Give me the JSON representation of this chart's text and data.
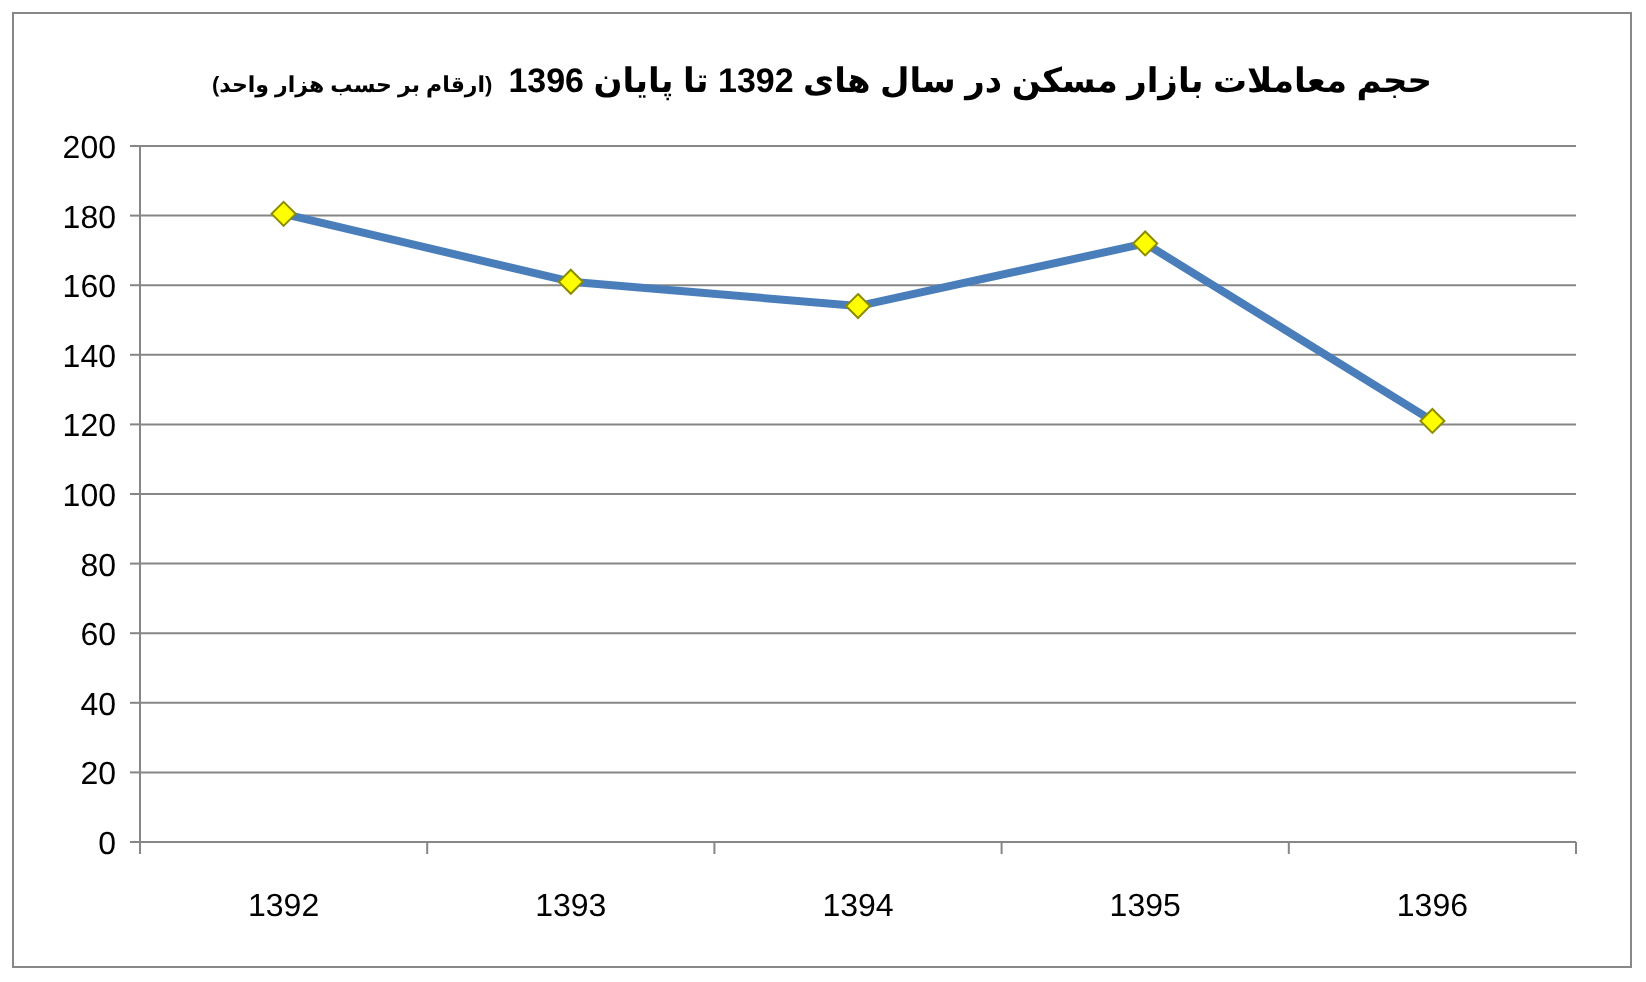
{
  "chart_data": {
    "type": "line",
    "title": "حجم معاملات بازار مسکن در سال های 1392 تا پایان 1396",
    "subtitle": "(ارقام بر حسب هزار واحد)",
    "categories": [
      "1392",
      "1393",
      "1394",
      "1395",
      "1396"
    ],
    "series": [
      {
        "color": "#4a7ebb",
        "values": [
          180.5,
          161,
          154,
          172,
          121
        ]
      }
    ],
    "ylim": [
      0,
      200
    ],
    "yticks": [
      0,
      20,
      40,
      60,
      80,
      100,
      120,
      140,
      160,
      180,
      200
    ],
    "grid": "y",
    "marker": "diamond"
  }
}
